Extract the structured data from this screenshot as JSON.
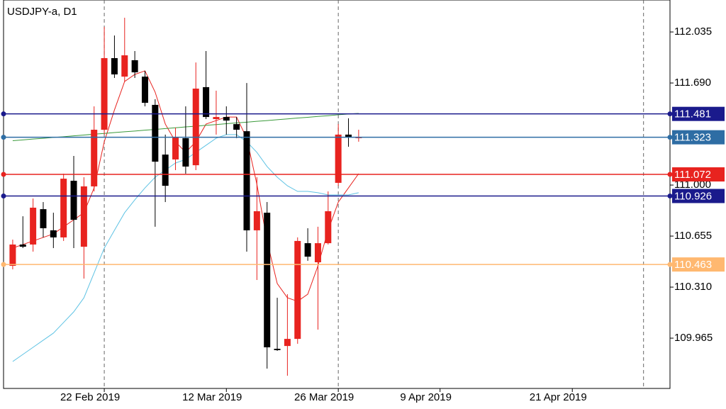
{
  "chart_data": {
    "type": "candlestick",
    "title": "USDJPY-a, D1",
    "up_color": "#e8231f",
    "down_color": "#000000",
    "xlim": [
      -0.9,
      64.6
    ],
    "xticks": [
      {
        "value": 9,
        "label": "22 Feb 2019"
      },
      {
        "value": 21,
        "label": "12 Mar 2019"
      },
      {
        "value": 32,
        "label": "26 Mar 2019"
      },
      {
        "value": 42,
        "label": "9 Apr 2019"
      },
      {
        "value": 55,
        "label": "21 Apr 2019"
      }
    ],
    "period_separators": [
      9,
      32,
      62
    ],
    "ylim": [
      109.625,
      112.251
    ],
    "yticks": [
      112.035,
      {
        "value": 111.69,
        "label": "111.690"
      },
      {
        "value": 111,
        "label": "111.000"
      },
      110.655,
      {
        "value": 110.31,
        "label": "110.310"
      },
      109.965
    ],
    "open": [
      110.454,
      110.598,
      110.598,
      110.837,
      110.694,
      110.646,
      111.029,
      110.583,
      110.991,
      111.374,
      111.858,
      111.733,
      111.844,
      111.733,
      111.542,
      111.206,
      111.173,
      111.317,
      111.134,
      111.662,
      111.446,
      111.46,
      111.412,
      111.364,
      110.694,
      110.813,
      109.893,
      109.912,
      109.96,
      110.607,
      110.478,
      110.607,
      111.015,
      111.341,
      111.317
    ],
    "high": [
      110.631,
      110.789,
      110.909,
      110.885,
      110.813,
      111.077,
      111.197,
      111.053,
      111.532,
      112.069,
      112.011,
      112.131,
      111.906,
      111.772,
      111.58,
      111.341,
      111.388,
      111.532,
      111.829,
      111.906,
      111.638,
      111.532,
      111.46,
      111.69,
      111.053,
      110.885,
      110.238,
      110.262,
      110.646,
      110.708,
      110.718,
      110.957,
      111.412,
      111.451,
      111.374
    ],
    "low": [
      110.43,
      110.574,
      110.55,
      110.646,
      110.574,
      110.622,
      110.574,
      110.368,
      110.957,
      111.341,
      111.724,
      111.7,
      111.724,
      111.532,
      110.718,
      110.885,
      111.101,
      111.077,
      111.101,
      111.446,
      111.341,
      111.341,
      111.317,
      110.55,
      110.358,
      109.759,
      109.879,
      109.711,
      109.927,
      110.488,
      110.023,
      110.598,
      110.995,
      111.259,
      111.293
    ],
    "close": [
      110.598,
      110.583,
      110.847,
      110.708,
      110.646,
      111.043,
      110.765,
      110.991,
      111.374,
      111.858,
      111.748,
      111.877,
      111.762,
      111.556,
      111.158,
      110.995,
      111.326,
      111.125,
      111.652,
      111.46,
      111.46,
      111.436,
      111.374,
      110.694,
      110.823,
      109.903,
      109.884,
      109.96,
      110.622,
      110.516,
      110.607,
      110.823,
      111.341,
      111.326,
      111.326
    ],
    "series": [
      {
        "color": "#e8231f",
        "values": [
          110.574,
          110.598,
          110.622,
          110.646,
          110.67,
          110.718,
          110.765,
          110.813,
          110.981,
          111.293,
          111.508,
          111.7,
          111.748,
          111.772,
          111.628,
          111.412,
          111.293,
          111.221,
          111.293,
          111.412,
          111.436,
          111.46,
          111.46,
          111.317,
          111.005,
          110.622,
          110.334,
          110.238,
          110.214,
          110.262,
          110.454,
          110.694,
          110.885,
          110.981,
          111.077
        ]
      },
      {
        "color": "#5fc3e4",
        "values": [
          109.807,
          109.855,
          109.903,
          109.951,
          109.999,
          110.071,
          110.143,
          110.238,
          110.406,
          110.574,
          110.694,
          110.813,
          110.9,
          110.981,
          111.053,
          111.101,
          111.149,
          111.173,
          111.221,
          111.269,
          111.317,
          111.341,
          111.341,
          111.293,
          111.221,
          111.125,
          111.053,
          110.995,
          110.957,
          110.957,
          110.948,
          110.933,
          110.933,
          110.933,
          110.948
        ]
      },
      {
        "color": "#3a9a3a",
        "values": [
          111.3,
          111.305,
          111.311,
          111.316,
          111.322,
          111.327,
          111.333,
          111.338,
          111.344,
          111.349,
          111.355,
          111.36,
          111.365,
          111.371,
          111.376,
          111.382,
          111.387,
          111.393,
          111.398,
          111.404,
          111.409,
          111.415,
          111.42,
          111.425,
          111.431,
          111.436,
          111.442,
          111.447,
          111.453,
          111.458,
          111.464,
          111.469,
          111.475,
          111.48,
          111.484
        ]
      }
    ],
    "hlines": [
      {
        "value": 111.481,
        "color": "#1a1a8c"
      },
      {
        "value": 111.323,
        "color": "#2e6da4"
      },
      {
        "value": 111.072,
        "color": "#e8231f"
      },
      {
        "value": 110.926,
        "color": "#1a1a8c"
      },
      {
        "value": 110.463,
        "color": "#ffb870"
      }
    ]
  }
}
